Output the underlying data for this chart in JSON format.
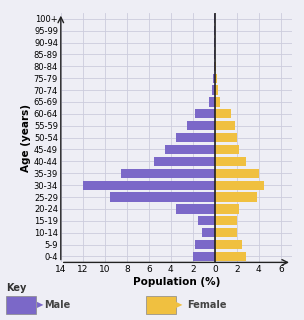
{
  "age_groups": [
    "0-4",
    "5-9",
    "10-14",
    "15-19",
    "20-24",
    "25-29",
    "30-34",
    "35-39",
    "40-44",
    "45-49",
    "50-54",
    "55-59",
    "60-64",
    "65-69",
    "70-74",
    "75-79",
    "80-84",
    "85-89",
    "90-94",
    "95-99",
    "100+"
  ],
  "male": [
    2.0,
    1.8,
    1.2,
    1.5,
    3.5,
    9.5,
    12.0,
    8.5,
    5.5,
    4.5,
    3.5,
    2.5,
    1.8,
    0.5,
    0.3,
    0.2,
    0.1,
    0.05,
    0.05,
    0.05,
    0.05
  ],
  "female": [
    2.8,
    2.5,
    2.0,
    2.0,
    2.2,
    3.8,
    4.5,
    4.0,
    2.8,
    2.2,
    2.0,
    1.8,
    1.5,
    0.5,
    0.3,
    0.2,
    0.1,
    0.05,
    0.05,
    0.05,
    0.05
  ],
  "male_color": "#7b68c8",
  "female_color": "#f0c040",
  "xlabel": "Population (%)",
  "ylabel": "Age (years)",
  "xlim": [
    -14,
    7
  ],
  "xticks": [
    -14,
    -12,
    -10,
    -8,
    -6,
    -4,
    -2,
    0,
    2,
    4,
    6
  ],
  "xticklabels": [
    "14",
    "12",
    "10",
    "8",
    "6",
    "4",
    "2",
    "0",
    "2",
    "4",
    "6"
  ],
  "grid_color": "#ccccdd",
  "bg_color": "#eeeef5",
  "key_label_male": "Male",
  "key_label_female": "Female"
}
